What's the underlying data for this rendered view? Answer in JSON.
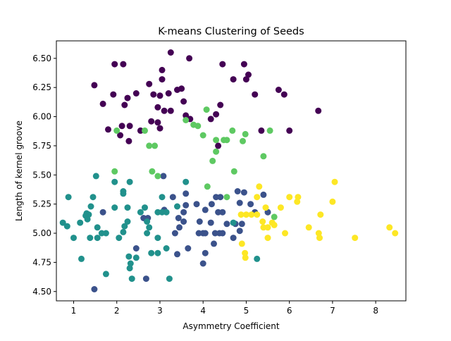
{
  "chart_data": {
    "type": "scatter",
    "title": "K-means Clustering of Seeds",
    "xlabel": "Asymmetry Coefficient",
    "ylabel": "Length of kernel groove",
    "xlim": [
      0.6,
      8.7
    ],
    "ylim": [
      4.42,
      6.65
    ],
    "xticks": [
      1,
      2,
      3,
      4,
      5,
      6,
      7,
      8
    ],
    "yticks": [
      4.5,
      4.75,
      5.0,
      5.25,
      5.5,
      5.75,
      6.0,
      6.25,
      6.5
    ],
    "ytick_labels": [
      "4.50",
      "4.75",
      "5.00",
      "5.25",
      "5.50",
      "5.75",
      "6.00",
      "6.25",
      "6.50"
    ],
    "legend": "none",
    "grid": false,
    "series": [
      {
        "color": "#440154",
        "points": [
          [
            3.25,
            6.55
          ],
          [
            3.68,
            6.5
          ],
          [
            1.95,
            6.45
          ],
          [
            2.15,
            6.45
          ],
          [
            4.45,
            6.45
          ],
          [
            4.95,
            6.45
          ],
          [
            3.05,
            6.4
          ],
          [
            5.05,
            6.36
          ],
          [
            4.7,
            6.32
          ],
          [
            5.0,
            6.32
          ],
          [
            3.05,
            6.32
          ],
          [
            2.75,
            6.28
          ],
          [
            1.48,
            6.27
          ],
          [
            3.4,
            6.23
          ],
          [
            3.5,
            6.24
          ],
          [
            5.75,
            6.23
          ],
          [
            3.2,
            6.2
          ],
          [
            2.45,
            6.2
          ],
          [
            1.92,
            6.19
          ],
          [
            2.85,
            6.19
          ],
          [
            3.0,
            6.18
          ],
          [
            5.2,
            6.19
          ],
          [
            5.88,
            6.19
          ],
          [
            2.25,
            6.16
          ],
          [
            3.55,
            6.13
          ],
          [
            1.68,
            6.11
          ],
          [
            2.18,
            6.1
          ],
          [
            4.4,
            6.1
          ],
          [
            2.95,
            6.08
          ],
          [
            3.1,
            6.05
          ],
          [
            3.25,
            6.05
          ],
          [
            6.67,
            6.05
          ],
          [
            3.6,
            6.01
          ],
          [
            4.3,
            6.02
          ],
          [
            3.7,
            5.98
          ],
          [
            4.18,
            5.98
          ],
          [
            2.8,
            5.96
          ],
          [
            2.95,
            5.95
          ],
          [
            3.0,
            5.9
          ],
          [
            2.12,
            5.92
          ],
          [
            2.3,
            5.92
          ],
          [
            1.8,
            5.89
          ],
          [
            2.55,
            5.88
          ],
          [
            5.35,
            5.88
          ],
          [
            6.0,
            5.88
          ],
          [
            2.08,
            5.84
          ],
          [
            2.28,
            5.79
          ],
          [
            4.35,
            5.75
          ]
        ]
      },
      {
        "color": "#3b528b",
        "points": [
          [
            1.48,
            4.52
          ],
          [
            2.68,
            4.61
          ],
          [
            2.45,
            4.87
          ],
          [
            3.4,
            4.82
          ],
          [
            3.65,
            4.87
          ],
          [
            4.0,
            4.74
          ],
          [
            4.05,
            4.83
          ],
          [
            4.25,
            4.91
          ],
          [
            4.7,
            4.96
          ],
          [
            4.85,
            5.02
          ],
          [
            3.35,
            5.0
          ],
          [
            3.45,
            5.05
          ],
          [
            3.9,
            5.0
          ],
          [
            4.0,
            5.0
          ],
          [
            4.05,
            5.0
          ],
          [
            4.28,
            5.0
          ],
          [
            4.38,
            5.0
          ],
          [
            4.45,
            5.0
          ],
          [
            4.9,
            5.08
          ],
          [
            4.75,
            5.08
          ],
          [
            4.55,
            5.08
          ],
          [
            4.18,
            5.09
          ],
          [
            3.92,
            5.1
          ],
          [
            3.55,
            5.1
          ],
          [
            3.43,
            5.13
          ],
          [
            2.62,
            5.13
          ],
          [
            2.72,
            5.13
          ],
          [
            3.55,
            5.18
          ],
          [
            4.35,
            5.18
          ],
          [
            4.45,
            5.18
          ],
          [
            5.2,
            5.18
          ],
          [
            5.5,
            5.18
          ],
          [
            4.05,
            5.2
          ],
          [
            3.1,
            5.2
          ],
          [
            1.68,
            5.18
          ],
          [
            4.2,
            5.25
          ],
          [
            4.85,
            5.26
          ],
          [
            3.6,
            5.24
          ],
          [
            3.85,
            5.25
          ],
          [
            5.1,
            5.25
          ],
          [
            4.3,
            5.31
          ],
          [
            4.4,
            5.31
          ],
          [
            3.3,
            5.31
          ],
          [
            4.8,
            5.36
          ],
          [
            4.95,
            5.35
          ],
          [
            3.6,
            5.34
          ],
          [
            5.4,
            5.33
          ],
          [
            3.08,
            5.49
          ]
        ]
      },
      {
        "color": "#21918c",
        "points": [
          [
            1.52,
            5.49
          ],
          [
            1.95,
            5.44
          ],
          [
            2.3,
            5.44
          ],
          [
            0.88,
            5.31
          ],
          [
            1.45,
            5.31
          ],
          [
            2.15,
            5.36
          ],
          [
            2.15,
            5.34
          ],
          [
            3.6,
            5.44
          ],
          [
            3.05,
            5.31
          ],
          [
            1.4,
            5.23
          ],
          [
            1.3,
            5.17
          ],
          [
            1.35,
            5.16
          ],
          [
            1.32,
            5.12
          ],
          [
            1.28,
            5.15
          ],
          [
            1.95,
            5.22
          ],
          [
            2.25,
            5.22
          ],
          [
            2.55,
            5.18
          ],
          [
            2.65,
            5.22
          ],
          [
            2.95,
            5.18
          ],
          [
            3.05,
            5.18
          ],
          [
            3.15,
            5.18
          ],
          [
            2.7,
            5.1
          ],
          [
            2.25,
            5.1
          ],
          [
            2.18,
            5.06
          ],
          [
            2.15,
            5.01
          ],
          [
            1.55,
            5.05
          ],
          [
            1.65,
            5.0
          ],
          [
            1.75,
            5.0
          ],
          [
            0.75,
            5.09
          ],
          [
            0.85,
            5.06
          ],
          [
            1.15,
            5.09
          ],
          [
            1.0,
            4.96
          ],
          [
            1.38,
            4.96
          ],
          [
            1.55,
            4.96
          ],
          [
            2.05,
            4.96
          ],
          [
            2.7,
            5.0
          ],
          [
            2.75,
            5.05
          ],
          [
            2.95,
            4.96
          ],
          [
            3.15,
            4.87
          ],
          [
            2.8,
            4.83
          ],
          [
            2.95,
            4.83
          ],
          [
            2.28,
            4.8
          ],
          [
            2.45,
            4.79
          ],
          [
            2.32,
            4.74
          ],
          [
            2.3,
            4.7
          ],
          [
            1.75,
            4.65
          ],
          [
            2.35,
            4.61
          ],
          [
            3.22,
            4.61
          ],
          [
            1.18,
            4.78
          ],
          [
            5.25,
            4.78
          ],
          [
            4.7,
            5.09
          ],
          [
            3.4,
            5.23
          ]
        ]
      },
      {
        "color": "#5ec962",
        "points": [
          [
            4.08,
            6.06
          ],
          [
            3.6,
            5.97
          ],
          [
            3.78,
            5.93
          ],
          [
            3.88,
            5.92
          ],
          [
            2.0,
            5.88
          ],
          [
            2.65,
            5.88
          ],
          [
            4.0,
            5.84
          ],
          [
            4.68,
            5.88
          ],
          [
            4.98,
            5.85
          ],
          [
            5.55,
            5.88
          ],
          [
            4.3,
            5.8
          ],
          [
            4.48,
            5.8
          ],
          [
            4.55,
            5.8
          ],
          [
            4.92,
            5.79
          ],
          [
            2.75,
            5.75
          ],
          [
            2.88,
            5.75
          ],
          [
            4.3,
            5.7
          ],
          [
            5.4,
            5.66
          ],
          [
            4.22,
            5.62
          ],
          [
            1.95,
            5.53
          ],
          [
            2.82,
            5.53
          ],
          [
            2.95,
            5.49
          ],
          [
            4.72,
            5.53
          ],
          [
            4.1,
            5.4
          ],
          [
            4.55,
            5.31
          ],
          [
            5.65,
            5.14
          ]
        ]
      },
      {
        "color": "#fde725",
        "points": [
          [
            5.3,
            5.4
          ],
          [
            7.05,
            5.44
          ],
          [
            5.25,
            5.31
          ],
          [
            6.0,
            5.31
          ],
          [
            6.2,
            5.31
          ],
          [
            6.18,
            5.27
          ],
          [
            7.0,
            5.27
          ],
          [
            5.45,
            5.22
          ],
          [
            5.8,
            5.22
          ],
          [
            5.0,
            5.16
          ],
          [
            4.88,
            5.16
          ],
          [
            5.12,
            5.16
          ],
          [
            5.25,
            5.16
          ],
          [
            6.72,
            5.16
          ],
          [
            5.38,
            5.1
          ],
          [
            5.6,
            5.09
          ],
          [
            5.65,
            5.07
          ],
          [
            5.4,
            5.05
          ],
          [
            5.5,
            5.05
          ],
          [
            6.45,
            5.05
          ],
          [
            8.32,
            5.05
          ],
          [
            5.9,
            5.0
          ],
          [
            6.68,
            5.0
          ],
          [
            8.45,
            5.0
          ],
          [
            5.5,
            4.96
          ],
          [
            6.7,
            4.96
          ],
          [
            7.52,
            4.96
          ],
          [
            4.9,
            4.91
          ],
          [
            4.97,
            4.83
          ],
          [
            4.98,
            4.79
          ]
        ]
      }
    ]
  }
}
